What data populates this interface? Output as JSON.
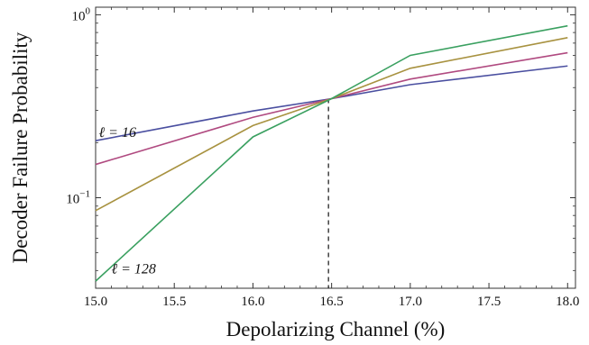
{
  "chart_data": {
    "type": "line",
    "xlabel": "Depolarizing Channel (%)",
    "ylabel": "Decoder Failure Probability",
    "xlim": [
      15.0,
      18.05
    ],
    "ylim": [
      0.032,
      1.1
    ],
    "yscale": "log",
    "grid": false,
    "x": [
      15.0,
      16.0,
      16.5,
      17.0,
      18.0
    ],
    "series": [
      {
        "color": "#4a4fa0",
        "values": [
          0.205,
          0.298,
          0.348,
          0.415,
          0.525
        ]
      },
      {
        "color": "#b04a80",
        "values": [
          0.152,
          0.275,
          0.348,
          0.445,
          0.62
        ]
      },
      {
        "color": "#a89240",
        "values": [
          0.085,
          0.248,
          0.348,
          0.51,
          0.75
        ]
      },
      {
        "color": "#3aa060",
        "values": [
          0.035,
          0.215,
          0.348,
          0.6,
          0.87
        ]
      }
    ],
    "threshold_x": 16.48,
    "x_ticks": [
      "15.0",
      "15.5",
      "16.0",
      "16.5",
      "17.0",
      "17.5",
      "18.0"
    ],
    "x_tick_values": [
      15.0,
      15.5,
      16.0,
      16.5,
      17.0,
      17.5,
      18.0
    ],
    "y_ticks": [
      {
        "value": 1,
        "base": "10",
        "exp": "0"
      },
      {
        "value": 0.1,
        "base": "10",
        "exp": "−1"
      }
    ],
    "annotations": [
      {
        "text": "ℓ = 16",
        "x": 15.02,
        "y": 0.215
      },
      {
        "text": "ℓ = 128",
        "x": 15.1,
        "y": 0.0385
      }
    ]
  }
}
